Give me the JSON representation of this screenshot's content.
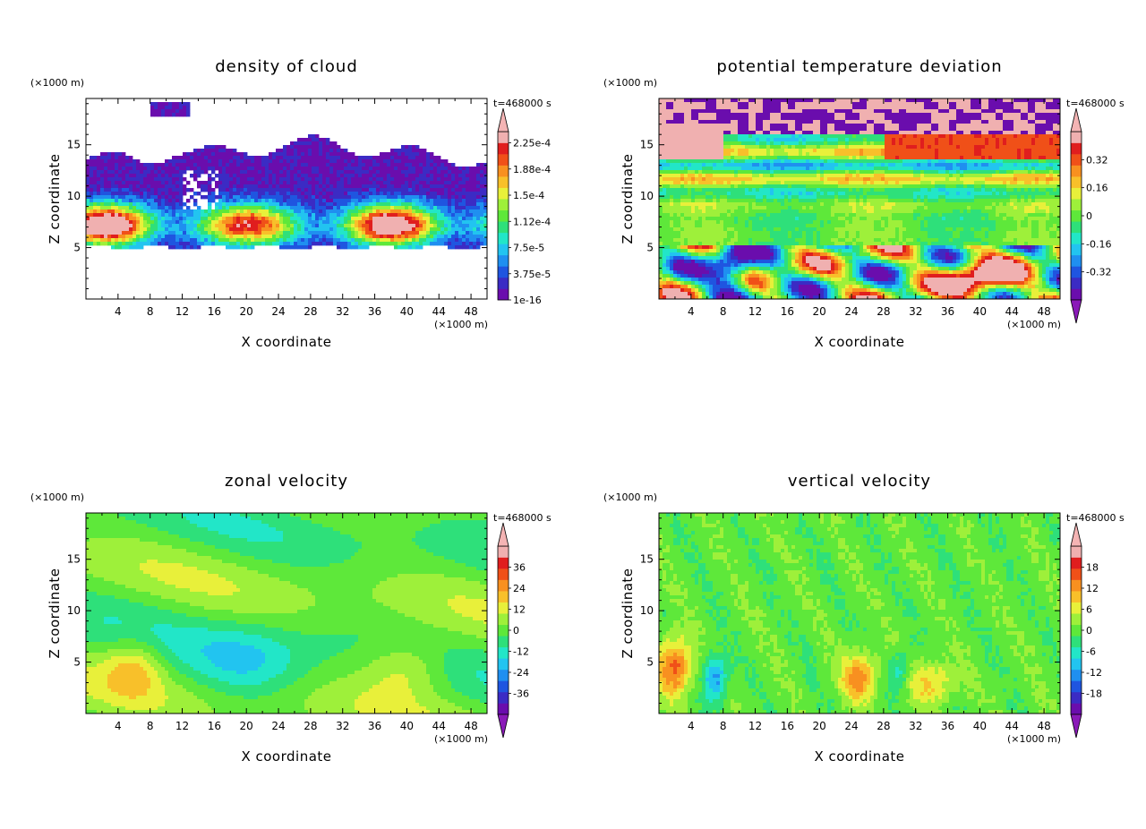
{
  "chart_data": [
    {
      "type": "heatmap",
      "title": "density of cloud",
      "xlabel": "X coordinate",
      "ylabel": "Z coordinate",
      "x_unit": "(×1000 m)",
      "y_unit": "(×1000 m)",
      "time_label": "t=468000 s",
      "xlim": [
        0,
        50
      ],
      "ylim": [
        0,
        19.5
      ],
      "x_ticks": [
        "4",
        "8",
        "12",
        "16",
        "20",
        "24",
        "28",
        "32",
        "36",
        "40",
        "44",
        "48"
      ],
      "y_ticks": [
        "5",
        "10",
        "15"
      ],
      "colorbar_labels": [
        "1e-16",
        "3.75e-5",
        "7.5e-5",
        "1.12e-4",
        "1.5e-4",
        "1.88e-4",
        "2.25e-4"
      ],
      "colorbar_extend": "max",
      "field": "cloud"
    },
    {
      "type": "heatmap",
      "title": "potential temperature deviation",
      "xlabel": "X coordinate",
      "ylabel": "Z coordinate",
      "x_unit": "(×1000 m)",
      "y_unit": "(×1000 m)",
      "time_label": "t=468000 s",
      "xlim": [
        0,
        50
      ],
      "ylim": [
        0,
        19.5
      ],
      "x_ticks": [
        "4",
        "8",
        "12",
        "16",
        "20",
        "24",
        "28",
        "32",
        "36",
        "40",
        "44",
        "48"
      ],
      "y_ticks": [
        "5",
        "10",
        "15"
      ],
      "colorbar_labels": [
        "-0.32",
        "-0.16",
        "0",
        "0.16",
        "0.32"
      ],
      "colorbar_extend": "both",
      "field": "theta"
    },
    {
      "type": "heatmap",
      "title": "zonal velocity",
      "xlabel": "X coordinate",
      "ylabel": "Z coordinate",
      "x_unit": "(×1000 m)",
      "y_unit": "(×1000 m)",
      "time_label": "t=468000 s",
      "xlim": [
        0,
        50
      ],
      "ylim": [
        0,
        19.5
      ],
      "x_ticks": [
        "4",
        "8",
        "12",
        "16",
        "20",
        "24",
        "28",
        "32",
        "36",
        "40",
        "44",
        "48"
      ],
      "y_ticks": [
        "5",
        "10",
        "15"
      ],
      "colorbar_labels": [
        "-36",
        "-24",
        "-12",
        "0",
        "12",
        "24",
        "36"
      ],
      "colorbar_extend": "both",
      "field": "u"
    },
    {
      "type": "heatmap",
      "title": "vertical velocity",
      "xlabel": "X coordinate",
      "ylabel": "Z coordinate",
      "x_unit": "(×1000 m)",
      "y_unit": "(×1000 m)",
      "time_label": "t=468000 s",
      "xlim": [
        0,
        50
      ],
      "ylim": [
        0,
        19.5
      ],
      "x_ticks": [
        "4",
        "8",
        "12",
        "16",
        "20",
        "24",
        "28",
        "32",
        "36",
        "40",
        "44",
        "48"
      ],
      "y_ticks": [
        "5",
        "10",
        "15"
      ],
      "colorbar_labels": [
        "-18",
        "-12",
        "-6",
        "0",
        "6",
        "12",
        "18"
      ],
      "colorbar_extend": "both",
      "field": "w"
    }
  ],
  "colormap": [
    "#6a0dad",
    "#3b2bc4",
    "#1f55e0",
    "#1f8ff0",
    "#22c4f0",
    "#22e6c8",
    "#2ee07a",
    "#5ee83a",
    "#9ef03a",
    "#e8f03a",
    "#f8c02a",
    "#f89020",
    "#f05018",
    "#e01e1e",
    "#f0b0b0"
  ],
  "extend_low_color": "#8a1ab8",
  "extend_high_color": "#f4b4b4"
}
